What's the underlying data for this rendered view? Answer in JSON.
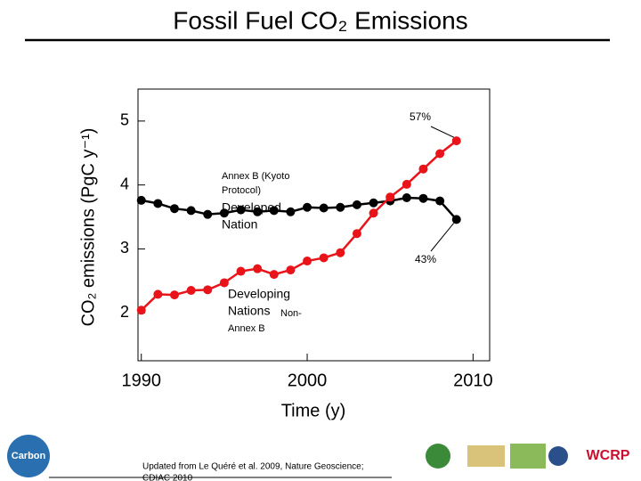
{
  "chart_data": {
    "type": "line",
    "title": "Fossil Fuel CO₂ Emissions",
    "x_label": "Time (y)",
    "y_label": "CO₂ emissions (PgC y⁻¹)",
    "x": [
      1990,
      1991,
      1992,
      1993,
      1994,
      1995,
      1996,
      1997,
      1998,
      1999,
      2000,
      2001,
      2002,
      2003,
      2004,
      2005,
      2006,
      2007,
      2008,
      2009
    ],
    "series": [
      {
        "color": "#000000",
        "values": [
          3.76,
          3.71,
          3.63,
          3.6,
          3.54,
          3.56,
          3.61,
          3.58,
          3.6,
          3.58,
          3.65,
          3.64,
          3.65,
          3.69,
          3.72,
          3.75,
          3.8,
          3.79,
          3.75,
          3.46
        ]
      },
      {
        "color": "#e8141a",
        "values": [
          2.04,
          2.29,
          2.28,
          2.35,
          2.36,
          2.47,
          2.65,
          2.69,
          2.6,
          2.67,
          2.81,
          2.86,
          2.94,
          3.24,
          3.56,
          3.81,
          4.01,
          4.25,
          4.49,
          4.69
        ]
      }
    ],
    "xlim": [
      1989.8,
      2011
    ],
    "ylim": [
      1.25,
      5.5
    ],
    "xticks": [
      1990,
      2000,
      2010
    ],
    "yticks": [
      2,
      3,
      4,
      5
    ],
    "annotations": [
      "57%",
      "43%",
      "Annex B (Kyoto",
      "Protocol)",
      "Developed",
      "Nation",
      "Developing",
      "Nations",
      "Non-",
      "Annex B"
    ],
    "source": [
      "Updated from Le Quéré et al. 2009, Nature Geoscience;",
      "CDIAC 2010"
    ]
  }
}
